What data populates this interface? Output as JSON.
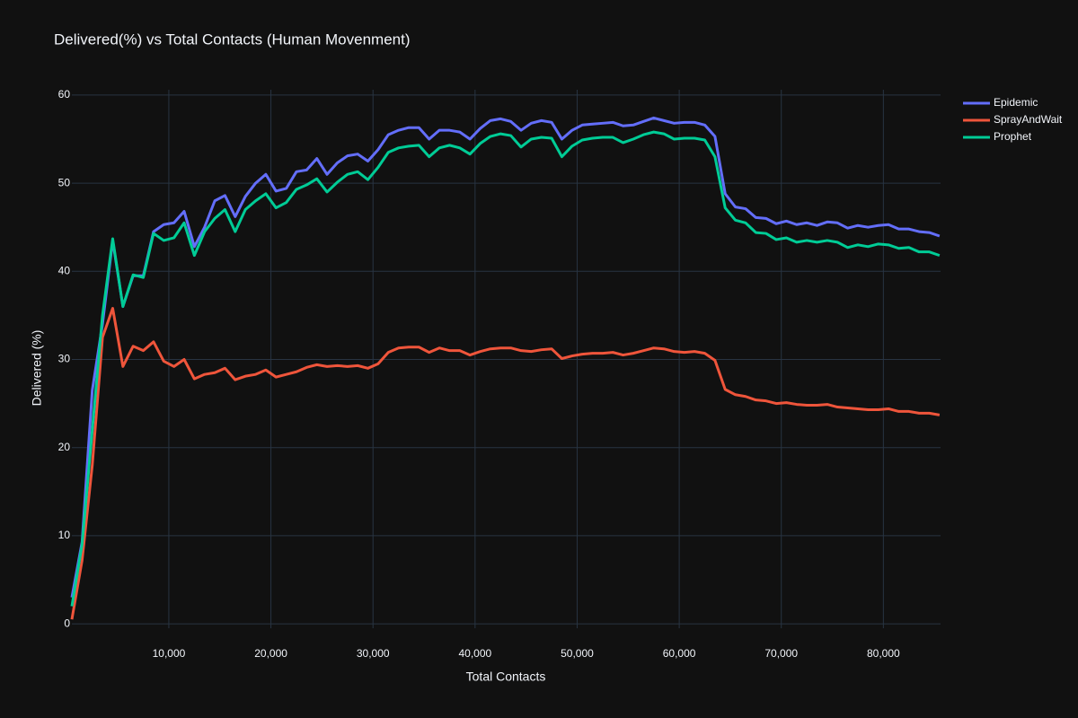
{
  "chart_data": {
    "type": "line",
    "title": "Delivered(%) vs Total Contacts (Human Movenment)",
    "x_label": "Total Contacts",
    "y_label": "Delivered (%)",
    "x": [
      500,
      1500,
      2500,
      3500,
      4500,
      5500,
      6500,
      7500,
      8500,
      9500,
      10500,
      11500,
      12500,
      13500,
      14500,
      15500,
      16500,
      17500,
      18500,
      19500,
      20500,
      21500,
      22500,
      23500,
      24500,
      25500,
      26500,
      27500,
      28500,
      29500,
      30500,
      31500,
      32500,
      33500,
      34500,
      35500,
      36500,
      37500,
      38500,
      39500,
      40500,
      41500,
      42500,
      43500,
      44500,
      45500,
      46500,
      47500,
      48500,
      49500,
      50500,
      51500,
      52500,
      53500,
      54500,
      55500,
      56500,
      57500,
      58500,
      59500,
      60500,
      61500,
      62500,
      63500,
      64500,
      65500,
      66500,
      67500,
      68500,
      69500,
      70500,
      71500,
      72500,
      73500,
      74500,
      75500,
      76500,
      77500,
      78500,
      79500,
      80500,
      81500,
      82500,
      83500,
      84500,
      85500
    ],
    "series": [
      {
        "name": "Epidemic",
        "color": "#636efa",
        "values": [
          3,
          9.3,
          26.5,
          34,
          43.5,
          36,
          39.5,
          39.5,
          44.5,
          45.3,
          45.5,
          46.8,
          42.8,
          45,
          48,
          48.6,
          46.2,
          48.5,
          50,
          51,
          49.1,
          49.4,
          51.3,
          51.5,
          52.8,
          51,
          52.3,
          53.1,
          53.3,
          52.5,
          53.8,
          55.5,
          56,
          56.3,
          56.3,
          55,
          56,
          56,
          55.8,
          55,
          56.2,
          57.1,
          57.3,
          57,
          56,
          56.8,
          57.1,
          56.9,
          55,
          56,
          56.6,
          56.7,
          56.8,
          56.9,
          56.5,
          56.6,
          57,
          57.4,
          57.1,
          56.8,
          56.9,
          56.9,
          56.6,
          55.3,
          48.8,
          47.3,
          47.1,
          46.1,
          46,
          45.4,
          45.7,
          45.3,
          45.5,
          45.2,
          45.6,
          45.5,
          44.9,
          45.2,
          45,
          45.2,
          45.3,
          44.8,
          44.8,
          44.5,
          44.4,
          44
        ]
      },
      {
        "name": "SprayAndWait",
        "color": "#ef553b",
        "values": [
          0.5,
          7.2,
          18,
          32.5,
          35.8,
          29.2,
          31.5,
          31,
          32,
          29.8,
          29.2,
          30,
          27.8,
          28.3,
          28.5,
          29,
          27.7,
          28.1,
          28.3,
          28.8,
          28,
          28.3,
          28.6,
          29.1,
          29.4,
          29.2,
          29.3,
          29.2,
          29.3,
          29,
          29.5,
          30.8,
          31.3,
          31.4,
          31.4,
          30.8,
          31.3,
          31,
          31,
          30.5,
          30.9,
          31.2,
          31.3,
          31.3,
          31,
          30.9,
          31.1,
          31.2,
          30.1,
          30.4,
          30.6,
          30.7,
          30.7,
          30.8,
          30.5,
          30.7,
          31,
          31.3,
          31.2,
          30.9,
          30.8,
          30.9,
          30.7,
          29.9,
          26.6,
          26,
          25.8,
          25.4,
          25.3,
          25,
          25.1,
          24.9,
          24.8,
          24.8,
          24.9,
          24.6,
          24.5,
          24.4,
          24.3,
          24.3,
          24.4,
          24.1,
          24.1,
          23.9,
          23.9,
          23.7
        ]
      },
      {
        "name": "Prophet",
        "color": "#00cc96",
        "values": [
          2,
          9,
          22,
          35,
          43.7,
          36,
          39.6,
          39.3,
          44.3,
          43.5,
          43.8,
          45.5,
          41.8,
          44.5,
          46,
          47,
          44.5,
          47,
          48,
          48.8,
          47.2,
          47.8,
          49.3,
          49.8,
          50.5,
          49,
          50.1,
          51,
          51.3,
          50.4,
          51.8,
          53.5,
          54,
          54.2,
          54.3,
          53,
          54,
          54.3,
          54,
          53.3,
          54.5,
          55.3,
          55.6,
          55.4,
          54.1,
          55,
          55.2,
          55.1,
          53,
          54.2,
          54.9,
          55.1,
          55.2,
          55.2,
          54.6,
          55,
          55.5,
          55.8,
          55.6,
          55,
          55.1,
          55.1,
          54.9,
          53,
          47.2,
          45.8,
          45.5,
          44.4,
          44.3,
          43.6,
          43.8,
          43.3,
          43.5,
          43.3,
          43.5,
          43.3,
          42.7,
          43,
          42.8,
          43.1,
          43,
          42.6,
          42.7,
          42.2,
          42.2,
          41.8
        ]
      }
    ],
    "xlim": [
      500,
      85600
    ],
    "xticks": [
      {
        "value": 10000,
        "label": "10,000"
      },
      {
        "value": 20000,
        "label": "20,000"
      },
      {
        "value": 30000,
        "label": "30,000"
      },
      {
        "value": 40000,
        "label": "40,000"
      },
      {
        "value": 50000,
        "label": "50,000"
      },
      {
        "value": 60000,
        "label": "60,000"
      },
      {
        "value": 70000,
        "label": "70,000"
      },
      {
        "value": 80000,
        "label": "80,000"
      }
    ],
    "ylim": [
      -0.5,
      60.6
    ],
    "yticks": [
      0,
      10,
      20,
      30,
      40,
      50,
      60
    ],
    "grid": true,
    "legend": "top-right"
  }
}
